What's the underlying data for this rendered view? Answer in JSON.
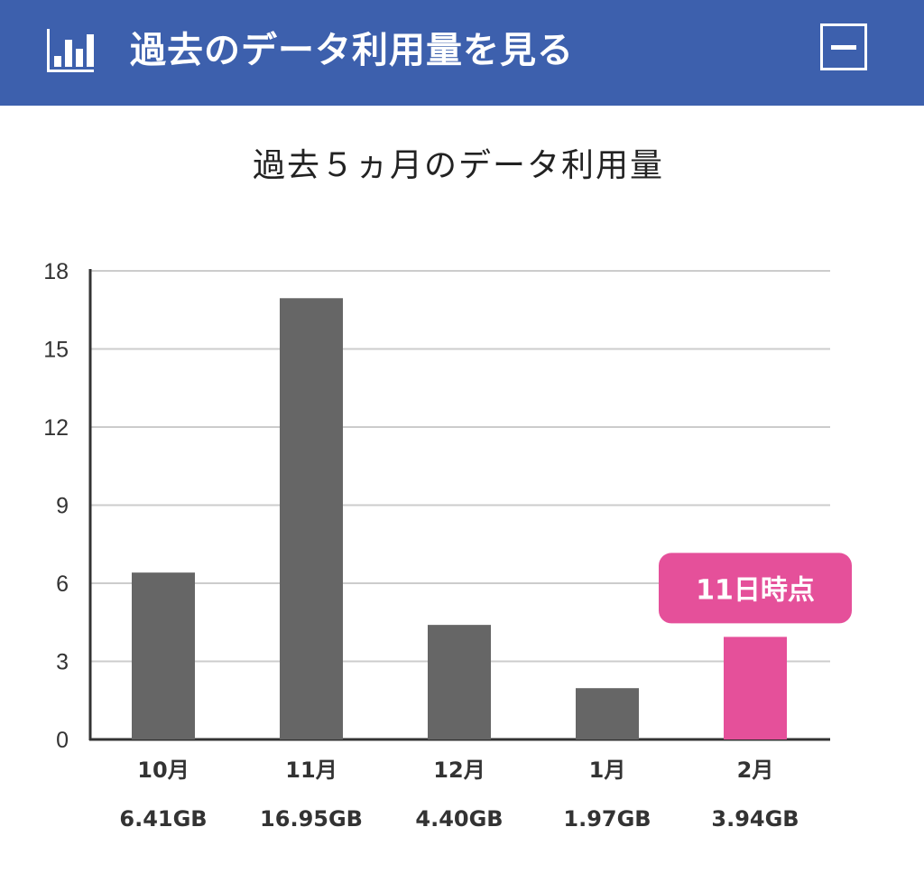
{
  "header": {
    "title": "過去のデータ利用量を見る",
    "icon": "bar-chart-icon",
    "collapse_icon": "minus-icon",
    "background": "#3d60ad"
  },
  "chart_data": {
    "type": "bar",
    "title": "過去５ヵ月のデータ利用量",
    "xlabel": "",
    "ylabel": "",
    "ylim": [
      0,
      18
    ],
    "yticks": [
      "0",
      "3",
      "6",
      "9",
      "12",
      "15",
      "18"
    ],
    "grid": true,
    "categories": [
      "10月",
      "11月",
      "12月",
      "1月",
      "2月"
    ],
    "values": [
      6.41,
      16.95,
      4.4,
      1.97,
      3.94
    ],
    "value_labels": [
      "6.41GB",
      "16.95GB",
      "4.40GB",
      "1.97GB",
      "3.94GB"
    ],
    "highlight_index": 4,
    "annotation": "11日時点",
    "colors": {
      "bar": "#666666",
      "highlight": "#e5509a",
      "grid": "#cccccc",
      "axis": "#333333"
    }
  }
}
